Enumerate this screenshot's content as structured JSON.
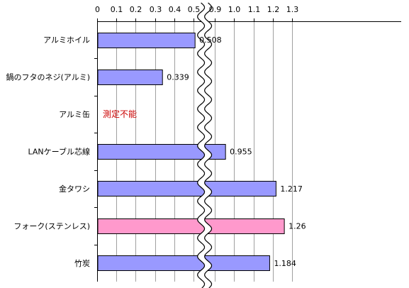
{
  "chart_data": {
    "type": "bar",
    "orientation": "horizontal",
    "axis_break": {
      "from": 0.55,
      "to": 0.85
    },
    "x_ticks_left": [
      "0",
      "0.1",
      "0.2",
      "0.3",
      "0.4",
      "0.5"
    ],
    "x_ticks_right": [
      "0.9",
      "1.0",
      "1.1",
      "1.2",
      "1.3"
    ],
    "xlim": [
      0,
      1.3
    ],
    "grid": true,
    "categories": [
      "アルミホイル",
      "鍋のフタのネジ(アルミ)",
      "アルミ缶",
      "LANケーブル芯線",
      "金タワシ",
      "フォーク(ステンレス)",
      "竹炭"
    ],
    "values": [
      0.508,
      0.339,
      null,
      0.955,
      1.217,
      1.26,
      1.184
    ],
    "value_labels": [
      "0.508",
      "0.339",
      "測定不能",
      "0.955",
      "1.217",
      "1.26",
      "1.184"
    ],
    "bar_colors": [
      "#9999ff",
      "#9999ff",
      "#9999ff",
      "#9999ff",
      "#9999ff",
      "#ff99cc",
      "#9999ff"
    ],
    "not_measurable_color": "#cc0000"
  }
}
